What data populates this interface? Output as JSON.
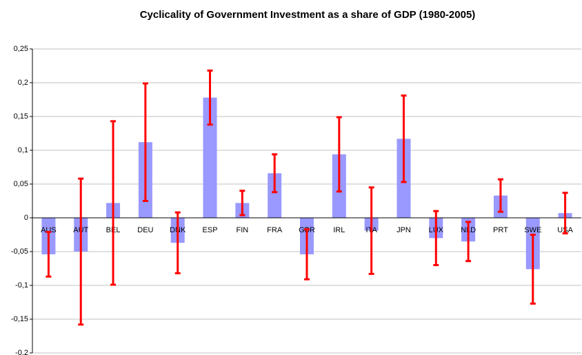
{
  "chart_data": {
    "type": "bar",
    "title": "Cyclicality of Government Investment as a share of GDP (1980-2005)",
    "categories": [
      "AUS",
      "AUT",
      "BEL",
      "DEU",
      "DNK",
      "ESP",
      "FIN",
      "FRA",
      "GBR",
      "IRL",
      "ITA",
      "JPN",
      "LUX",
      "NLD",
      "PRT",
      "SWE",
      "USA"
    ],
    "values": [
      -0.054,
      -0.05,
      0.022,
      0.112,
      -0.037,
      0.178,
      0.022,
      0.066,
      -0.054,
      0.094,
      -0.019,
      0.117,
      -0.03,
      -0.035,
      0.033,
      -0.076,
      0.007
    ],
    "errors": [
      0.033,
      0.108,
      0.121,
      0.087,
      0.045,
      0.04,
      0.018,
      0.028,
      0.037,
      0.055,
      0.064,
      0.064,
      0.04,
      0.029,
      0.024,
      0.051,
      0.03
    ],
    "color": "#9999ff",
    "error_color": "#ff0000",
    "ylim": [
      -0.2,
      0.25
    ],
    "yticks": [
      {
        "value": -0.2,
        "label": "-0,2"
      },
      {
        "value": -0.15,
        "label": "-0,15"
      },
      {
        "value": -0.1,
        "label": "-0,1"
      },
      {
        "value": -0.05,
        "label": "-0,05"
      },
      {
        "value": 0,
        "label": "0"
      },
      {
        "value": 0.05,
        "label": "0,05"
      },
      {
        "value": 0.1,
        "label": "0,1"
      },
      {
        "value": 0.15,
        "label": "0,15"
      },
      {
        "value": 0.2,
        "label": "0,2"
      },
      {
        "value": 0.25,
        "label": "0,25"
      }
    ],
    "grid": true
  }
}
